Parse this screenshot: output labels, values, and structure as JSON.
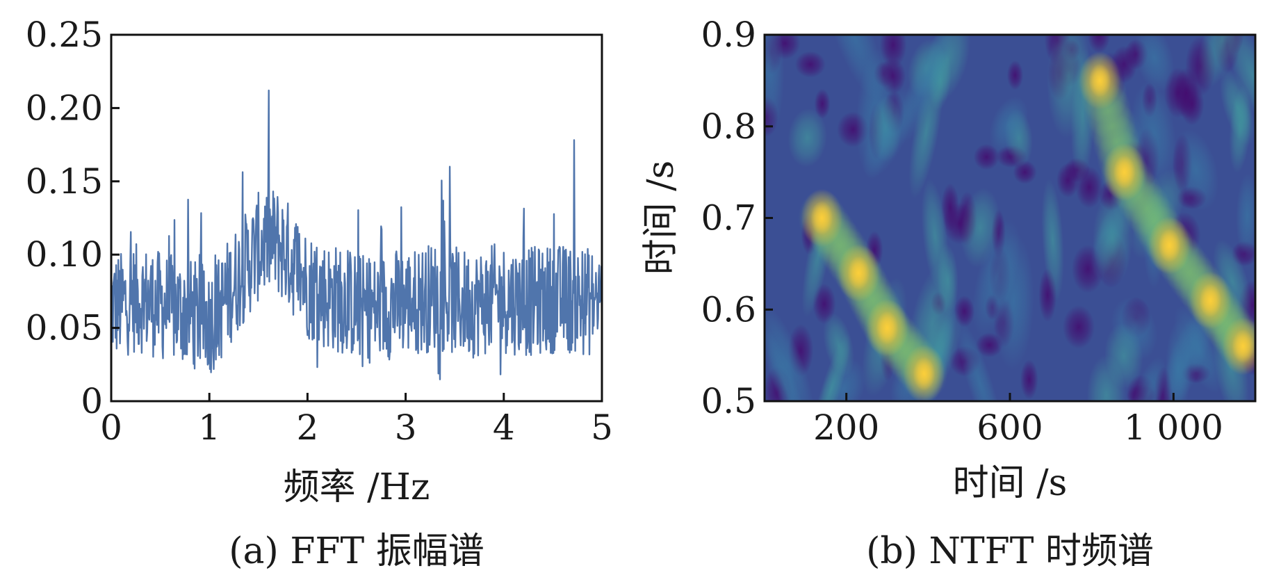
{
  "chart_data": [
    {
      "type": "line",
      "caption": "(a) FFT 振幅谱",
      "xlabel": "频率 /Hz",
      "ylabel": "",
      "xlim": [
        0,
        5
      ],
      "ylim": [
        0,
        0.25
      ],
      "xticks": [
        0,
        1,
        2,
        3,
        4,
        5
      ],
      "xtick_labels": [
        "0",
        "1",
        "2",
        "3",
        "4",
        "5"
      ],
      "yticks": [
        0,
        0.05,
        0.1,
        0.15,
        0.2,
        0.25
      ],
      "ytick_labels": [
        "0",
        "0.05",
        "0.10",
        "0.15",
        "0.20",
        "0.25"
      ],
      "line_color": "#3d66a3",
      "series": [
        {
          "x": [
            0,
            0.1,
            0.2,
            0.3,
            0.4,
            0.5,
            0.6,
            0.7,
            0.8,
            0.9,
            1.0,
            1.1,
            1.2,
            1.3,
            1.4,
            1.5,
            1.6,
            1.7,
            1.8,
            1.9,
            2.0,
            2.1,
            2.2,
            2.3,
            2.4,
            2.5,
            2.6,
            2.7,
            2.8,
            2.9,
            3.0,
            3.1,
            3.2,
            3.3,
            3.4,
            3.5,
            3.6,
            3.7,
            3.8,
            3.9,
            4.0,
            4.1,
            4.2,
            4.3,
            4.4,
            4.5,
            4.6,
            4.7,
            4.8,
            4.9,
            5.0
          ],
          "values": [
            0.065,
            0.065,
            0.07,
            0.07,
            0.068,
            0.065,
            0.063,
            0.062,
            0.06,
            0.058,
            0.055,
            0.062,
            0.075,
            0.085,
            0.095,
            0.105,
            0.11,
            0.108,
            0.1,
            0.09,
            0.08,
            0.075,
            0.072,
            0.07,
            0.068,
            0.065,
            0.063,
            0.063,
            0.065,
            0.067,
            0.068,
            0.068,
            0.07,
            0.072,
            0.07,
            0.068,
            0.067,
            0.067,
            0.068,
            0.07,
            0.07,
            0.069,
            0.068,
            0.068,
            0.069,
            0.07,
            0.07,
            0.069,
            0.068,
            0.068,
            0.07
          ]
        }
      ]
    },
    {
      "type": "heatmap",
      "caption": "(b) NTFT 时频谱",
      "xlabel": "时间 /s",
      "ylabel": "时间 /s",
      "xlim": [
        0,
        1200
      ],
      "ylim": [
        0.5,
        0.9
      ],
      "xticks": [
        200,
        600,
        1000
      ],
      "xtick_labels": [
        "200",
        "600",
        "1 000"
      ],
      "yticks": [
        0.5,
        0.6,
        0.7,
        0.8,
        0.9
      ],
      "ytick_labels": [
        "0.5",
        "0.6",
        "0.7",
        "0.8",
        "0.9"
      ],
      "colormap": [
        "#440a6e",
        "#3b4f94",
        "#3a7fa8",
        "#43a5a0",
        "#7dc16e",
        "#e3b33a",
        "#ffd23a"
      ],
      "ridges": [
        {
          "points": [
            [
              140,
              0.7
            ],
            [
              230,
              0.64
            ],
            [
              300,
              0.58
            ],
            [
              390,
              0.53
            ]
          ]
        },
        {
          "points": [
            [
              820,
              0.85
            ],
            [
              880,
              0.75
            ],
            [
              990,
              0.67
            ],
            [
              1090,
              0.61
            ],
            [
              1170,
              0.56
            ]
          ]
        }
      ]
    }
  ]
}
